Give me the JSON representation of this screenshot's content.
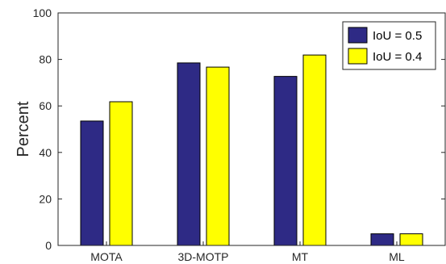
{
  "chart_data": {
    "type": "bar",
    "categories": [
      "MOTA",
      "3D-MOTP",
      "MT",
      "ML"
    ],
    "series": [
      {
        "name": "IoU = 0.5",
        "color": "#2e2a85",
        "values": [
          53.5,
          78.5,
          72.7,
          5.0
        ]
      },
      {
        "name": "IoU = 0.4",
        "color": "#ffff00",
        "values": [
          61.8,
          76.7,
          81.9,
          5.0
        ]
      }
    ],
    "title": "",
    "xlabel": "",
    "ylabel": "Percent",
    "ylim": [
      0,
      100
    ],
    "yticks": [
      "0",
      "20",
      "40",
      "60",
      "80",
      "100"
    ],
    "grid": false,
    "legend_position": "top-right"
  }
}
